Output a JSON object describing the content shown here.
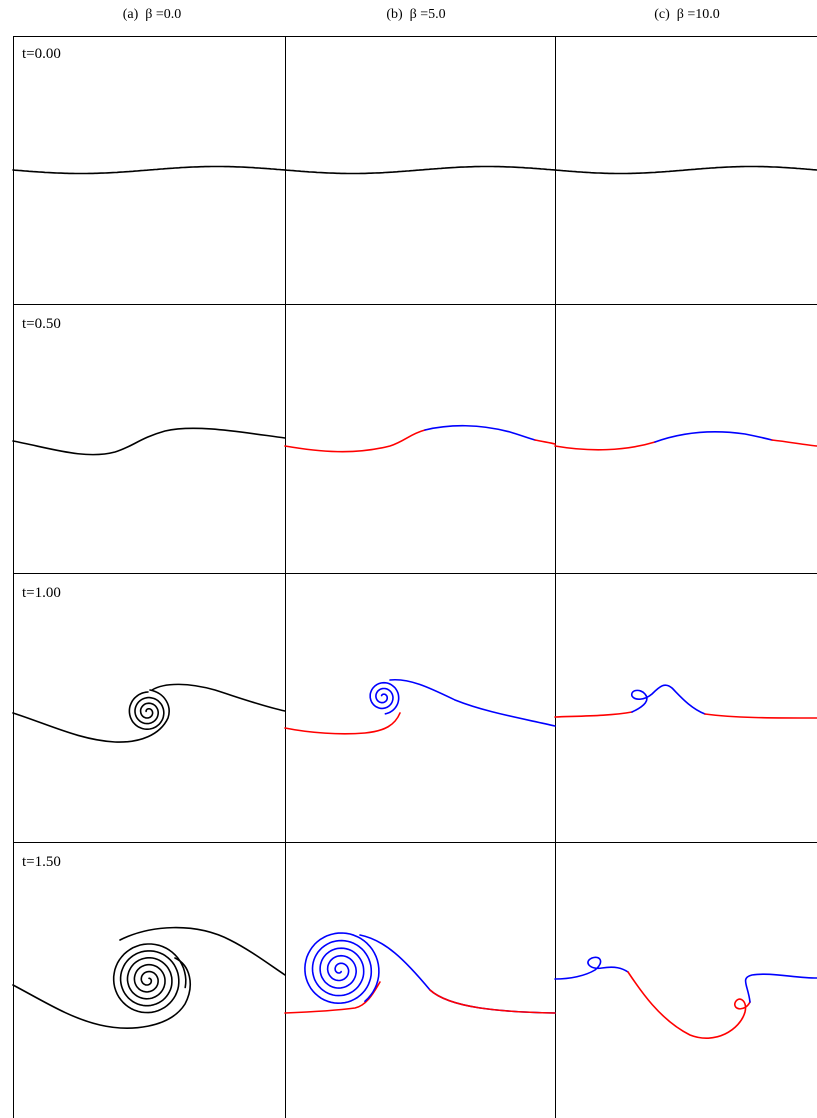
{
  "columns": [
    {
      "label": "(a)  β =0.0",
      "beta": 0.0
    },
    {
      "label": "(b)  β =5.0",
      "beta": 5.0
    },
    {
      "label": "(c)  β =10.0",
      "beta": 10.0
    }
  ],
  "rows": [
    {
      "label": "t=0.00",
      "t": 0.0
    },
    {
      "label": "t=0.50",
      "t": 0.5
    },
    {
      "label": "t=1.00",
      "t": 1.0
    },
    {
      "label": "t=1.50",
      "t": 1.5
    }
  ],
  "colors": {
    "line": "#000000",
    "positive": "#0000ff",
    "negative": "#ff0000",
    "frame": "#000000"
  }
}
